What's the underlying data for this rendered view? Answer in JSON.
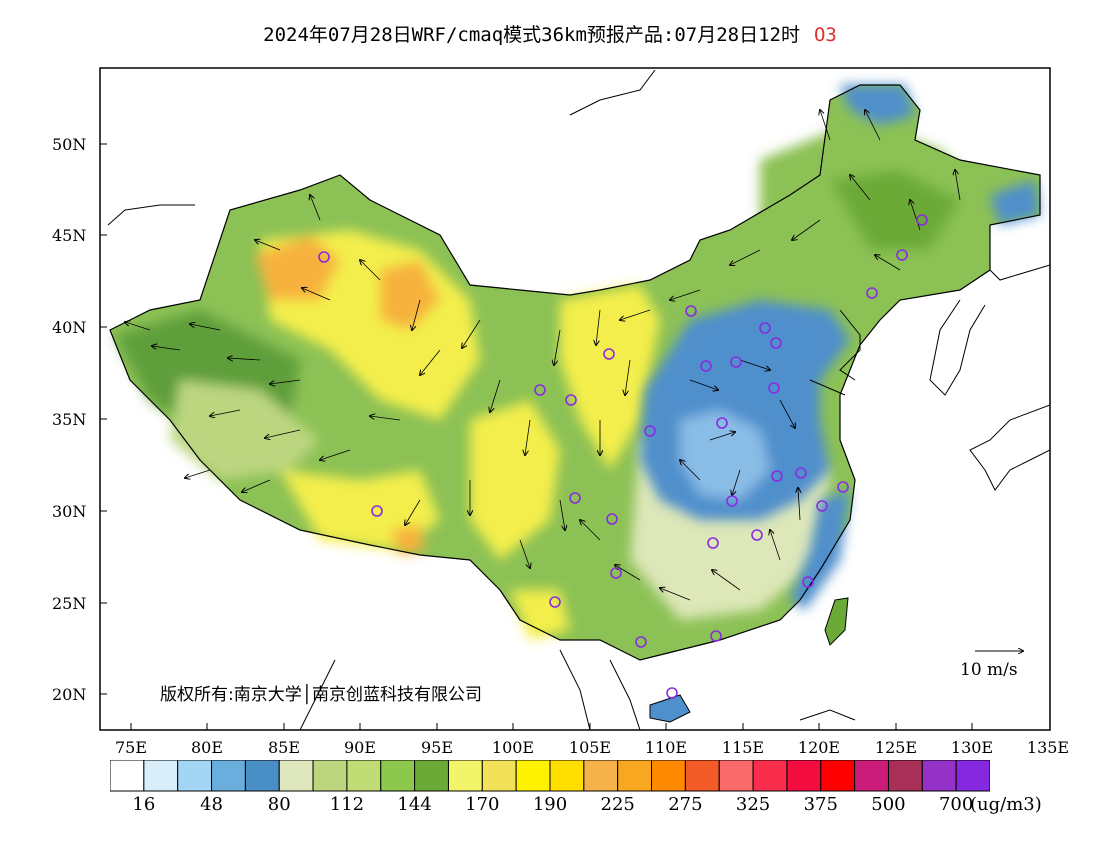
{
  "title": {
    "main": "2024年07月28日WRF/cmaq模式36km预报产品:07月28日12时",
    "species": "O3"
  },
  "map": {
    "lat_labels": [
      "20N",
      "25N",
      "30N",
      "35N",
      "40N",
      "45N",
      "50N"
    ],
    "lon_labels": [
      "75E",
      "80E",
      "85E",
      "90E",
      "95E",
      "100E",
      "105E",
      "110E",
      "115E",
      "120E",
      "125E",
      "130E",
      "135E"
    ],
    "copyright": "版权所有:南京大学│南京创蓝科技有限公司",
    "wind_scale_label": "10 m/s",
    "colors": {
      "high_ozone_orange": "#f6b23c",
      "yellow": "#f3ee4c",
      "green_dark": "#5f9f3a",
      "green_mid": "#8cc155",
      "green_light": "#bcd680",
      "pale_green": "#dde7b8",
      "blue": "#4f8fcc",
      "light_blue": "#8abde6",
      "station_marker": "#8a2be2"
    }
  },
  "colorbar": {
    "colors": [
      "#ffffff",
      "#d8eefa",
      "#a2d6f4",
      "#6aaede",
      "#4a8ec6",
      "#dfe8bc",
      "#bcd680",
      "#c0dc74",
      "#8cc84c",
      "#6caa38",
      "#f2f46a",
      "#f2e25a",
      "#fff200",
      "#fedf00",
      "#f6b24a",
      "#f8a820",
      "#ff8a00",
      "#f25a28",
      "#fb6a6a",
      "#f82e4c",
      "#f20c40",
      "#ff0000",
      "#cc1c7a",
      "#a83058",
      "#9432c8",
      "#8628e0"
    ],
    "labels": [
      "16",
      "48",
      "80",
      "112",
      "144",
      "170",
      "190",
      "225",
      "275",
      "325",
      "375",
      "500",
      "700"
    ],
    "units": "(ug/m3)"
  }
}
